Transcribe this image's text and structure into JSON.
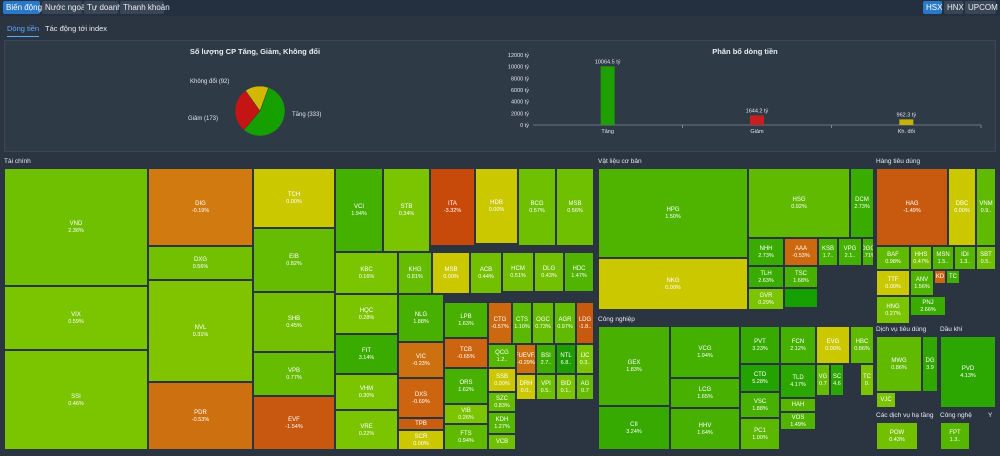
{
  "top_tabs": [
    {
      "label": "Biến động",
      "active": true
    },
    {
      "label": "Nước ngoài",
      "active": false
    },
    {
      "label": "Tự doanh",
      "active": false
    },
    {
      "label": "Thanh khoản",
      "active": false
    }
  ],
  "exchange_tabs": [
    {
      "label": "HSX",
      "active": true
    },
    {
      "label": "HNX",
      "active": false
    },
    {
      "label": "UPCOM",
      "active": false
    }
  ],
  "sub_tabs": [
    {
      "label": "Dòng tiền",
      "active": true
    },
    {
      "label": "Tác động tới index",
      "active": false
    }
  ],
  "colors": {
    "up_dark": "#16a000",
    "up": "#4fb800",
    "up_light": "#7fc800",
    "ref": "#c8c800",
    "down": "#c86400",
    "down_dark": "#c84000",
    "neutral": "#d9c400"
  },
  "pie": {
    "title": "Số lượng CP Tăng, Giảm, Không đổi",
    "labels": {
      "neutral": "Không đổi (92)",
      "down": "Giảm (173)",
      "up": "Tăng (333)"
    },
    "values": {
      "up": 333,
      "down": 173,
      "neutral": 92
    }
  },
  "chart_data": {
    "type": "bar",
    "title": "Phân bổ dòng tiền",
    "categories": [
      "Tăng",
      "Giảm",
      "Kh. đổi"
    ],
    "values": [
      10064.5,
      1644.2,
      962.3
    ],
    "value_labels": [
      "10064.5 tỷ",
      "1644.2 tỷ",
      "962.3 tỷ"
    ],
    "y_ticks": [
      "12000 tỷ",
      "10000 tỷ",
      "8000 tỷ",
      "6000 tỷ",
      "4000 tỷ",
      "2000 tỷ",
      "0 tỷ"
    ],
    "ylim": [
      0,
      12000
    ],
    "colors": [
      "#1ea000",
      "#c81e1e",
      "#c8b400"
    ]
  },
  "sectors": [
    {
      "title": "Tài chính",
      "cells": [
        {
          "t": "VND",
          "p": "2.36%",
          "c": "#6fc000"
        },
        {
          "t": "VIX",
          "p": "0.59%",
          "c": "#7ac400"
        },
        {
          "t": "SSI",
          "p": "0.46%",
          "c": "#7ac400"
        },
        {
          "t": "DIG",
          "p": "-0.19%",
          "c": "#d07a10"
        },
        {
          "t": "DXG",
          "p": "0.56%",
          "c": "#72c000"
        },
        {
          "t": "NVL",
          "p": "0.31%",
          "c": "#80c400"
        },
        {
          "t": "PDR",
          "p": "-0.53%",
          "c": "#cc7010"
        },
        {
          "t": "TCH",
          "p": "0.00%",
          "c": "#ccc800"
        },
        {
          "t": "EIB",
          "p": "0.82%",
          "c": "#66bc00"
        },
        {
          "t": "SHB",
          "p": "0.45%",
          "c": "#72c000"
        },
        {
          "t": "VPB",
          "p": "0.77%",
          "c": "#66bc00"
        },
        {
          "t": "EVF",
          "p": "-1.54%",
          "c": "#c85810"
        },
        {
          "t": "VCI",
          "p": "1.94%",
          "c": "#44b000"
        },
        {
          "t": "STB",
          "p": "0.34%",
          "c": "#7ac400"
        },
        {
          "t": "ITA",
          "p": "-3.32%",
          "c": "#c84a0a"
        },
        {
          "t": "HDB",
          "p": "0.00%",
          "c": "#ccc800"
        },
        {
          "t": "BCG",
          "p": "0.57%",
          "c": "#6ec000"
        },
        {
          "t": "MSB",
          "p": "0.56%",
          "c": "#6ec000"
        },
        {
          "t": "KBC",
          "p": "0.16%",
          "c": "#7ac400"
        },
        {
          "t": "HQC",
          "p": "0.28%",
          "c": "#7ac400"
        },
        {
          "t": "FIT",
          "p": "3.14%",
          "c": "#3aac00"
        },
        {
          "t": "VHM",
          "p": "0.30%",
          "c": "#7ac400"
        },
        {
          "t": "VRE",
          "p": "0.22%",
          "c": "#7ac400"
        },
        {
          "t": "KHG",
          "p": "0.81%",
          "c": "#66bc00"
        },
        {
          "t": "MSB",
          "p": "0.00%",
          "c": "#ccc800"
        },
        {
          "t": "ACB",
          "p": "0.44%",
          "c": "#72c000"
        },
        {
          "t": "HCM",
          "p": "0.51%",
          "c": "#72c000"
        },
        {
          "t": "DLG",
          "p": "0.43%",
          "c": "#72c000"
        },
        {
          "t": "HDC",
          "p": "1.47%",
          "c": "#50b400"
        },
        {
          "t": "NLG",
          "p": "1.88%",
          "c": "#48b000"
        },
        {
          "t": "VIC",
          "p": "-0.23%",
          "c": "#cc7010"
        },
        {
          "t": "DXS",
          "p": "-0.69%",
          "c": "#cc6410"
        },
        {
          "t": "TPB",
          "p": "-0.97%",
          "c": "#c85e10"
        },
        {
          "t": "SCR",
          "p": "0.00%",
          "c": "#ccc800"
        },
        {
          "t": "LPB",
          "p": "1.63%",
          "c": "#48b000"
        },
        {
          "t": "TCB",
          "p": "-0.65%",
          "c": "#cc6410"
        },
        {
          "t": "ORS",
          "p": "1.62%",
          "c": "#48b000"
        },
        {
          "t": "VIB",
          "p": "0.26%",
          "c": "#7ac400"
        },
        {
          "t": "FTS",
          "p": "0.94%",
          "c": "#60ba00"
        },
        {
          "t": "CTG",
          "p": "-0.57%",
          "c": "#cc6810"
        },
        {
          "t": "CTS",
          "p": "1.10%",
          "c": "#5ab800"
        },
        {
          "t": "OGC",
          "p": "0.73%",
          "c": "#66bc00"
        },
        {
          "t": "AGR",
          "p": "0.97%",
          "c": "#60ba00"
        },
        {
          "t": "LDG",
          "p": "-1.8..",
          "c": "#c85a10"
        },
        {
          "t": "QCG",
          "p": "1.2..",
          "c": "#56b600"
        },
        {
          "t": "SSB",
          "p": "0.00%",
          "c": "#ccc800"
        },
        {
          "t": "SZC",
          "p": "0.83%",
          "c": "#66bc00"
        },
        {
          "t": "KDH",
          "p": "1.27%",
          "c": "#56b600"
        },
        {
          "t": "VCB",
          "p": "0.58%",
          "c": "#6ec000"
        },
        {
          "t": "FUEVF..",
          "p": "-0.29%",
          "c": "#cc7010"
        },
        {
          "t": "BSI",
          "p": "2.7..",
          "c": "#40ae00"
        },
        {
          "t": "NTL",
          "p": "6.8..",
          "c": "#1e9e00"
        },
        {
          "t": "IJC",
          "p": "0.3..",
          "c": "#7ac400"
        },
        {
          "t": "DRH",
          "p": "0.0..",
          "c": "#ccc800"
        },
        {
          "t": "VPI",
          "p": "0.5..",
          "c": "#6ec000"
        },
        {
          "t": "BID",
          "p": "0.1..",
          "c": "#7ac400"
        },
        {
          "t": "AG",
          "p": "0.7",
          "c": "#66bc00"
        },
        {
          "t": "HT",
          "p": "1.",
          "c": "#50b400"
        }
      ]
    },
    {
      "title": "Vật liệu cơ bản",
      "cells": [
        {
          "t": "HPG",
          "p": "1.50%",
          "c": "#4eb400"
        },
        {
          "t": "NKG",
          "p": "0.00%",
          "c": "#ccc800"
        },
        {
          "t": "HSG",
          "p": "0.92%",
          "c": "#60ba00"
        },
        {
          "t": "DCM",
          "p": "2.73%",
          "c": "#3aac00"
        },
        {
          "t": "NHH",
          "p": "2.73%",
          "c": "#3aac00"
        },
        {
          "t": "AAA",
          "p": "-0.53%",
          "c": "#cc6810"
        },
        {
          "t": "KSB",
          "p": "1.7..",
          "c": "#48b000"
        },
        {
          "t": "VPG",
          "p": "2.1..",
          "c": "#44b000"
        },
        {
          "t": "DGC",
          "p": "1.71%",
          "c": "#48b000"
        },
        {
          "t": "TLH",
          "p": "2.63%",
          "c": "#3aac00"
        },
        {
          "t": "TSC",
          "p": "1.68%",
          "c": "#48b000"
        },
        {
          "t": "GVR",
          "p": "0.29%",
          "c": "#7ac400"
        }
      ]
    },
    {
      "title": "Công nghiệp",
      "cells": [
        {
          "t": "GEX",
          "p": "1.83%",
          "c": "#48b000"
        },
        {
          "t": "CII",
          "p": "3.24%",
          "c": "#36aa00"
        },
        {
          "t": "VCG",
          "p": "1.94%",
          "c": "#44b000"
        },
        {
          "t": "LCG",
          "p": "1.65%",
          "c": "#48b000"
        },
        {
          "t": "HHV",
          "p": "1.64%",
          "c": "#48b000"
        },
        {
          "t": "PVT",
          "p": "3.23%",
          "c": "#36aa00"
        },
        {
          "t": "CTD",
          "p": "5.28%",
          "c": "#24a200"
        },
        {
          "t": "VSC",
          "p": "1.88%",
          "c": "#48b000"
        },
        {
          "t": "PC1",
          "p": "1.00%",
          "c": "#5ab800"
        },
        {
          "t": "FCN",
          "p": "2.12%",
          "c": "#44b000"
        },
        {
          "t": "EVG",
          "p": "0.00%",
          "c": "#ccc800"
        },
        {
          "t": "HBC",
          "p": "0.86%",
          "c": "#60ba00"
        },
        {
          "t": "TLD",
          "p": "4.17%",
          "c": "#2ca600"
        },
        {
          "t": "HAH",
          "p": "1.33%",
          "c": "#56b600"
        },
        {
          "t": "VOS",
          "p": "1.49%",
          "c": "#50b400"
        },
        {
          "t": "VG",
          "p": "0.7",
          "c": "#66bc00"
        },
        {
          "t": "SC",
          "p": "4.6",
          "c": "#2ca600"
        },
        {
          "t": "TC",
          "p": "0.",
          "c": "#7ac400"
        }
      ]
    },
    {
      "title": "Hàng tiêu dùng",
      "cells": [
        {
          "t": "HAG",
          "p": "-1.49%",
          "c": "#c85a10"
        },
        {
          "t": "DBC",
          "p": "0.00%",
          "c": "#ccc800"
        },
        {
          "t": "VNM",
          "p": "0.9..",
          "c": "#60ba00"
        },
        {
          "t": "BAF",
          "p": "0.98%",
          "c": "#60ba00"
        },
        {
          "t": "HHS",
          "p": "0.47%",
          "c": "#72c000"
        },
        {
          "t": "MSN",
          "p": "1.5..",
          "c": "#50b400"
        },
        {
          "t": "IDI",
          "p": "1.3..",
          "c": "#56b600"
        },
        {
          "t": "SBT",
          "p": "0.5..",
          "c": "#6ec000"
        },
        {
          "t": "TTF",
          "p": "0.00%",
          "c": "#ccc800"
        },
        {
          "t": "ANV",
          "p": "1.56%",
          "c": "#50b400"
        },
        {
          "t": "KD",
          "p": "-0.",
          "c": "#cc6410"
        },
        {
          "t": "TC",
          "p": "2.",
          "c": "#40ae00"
        },
        {
          "t": "PNJ",
          "p": "2.66%",
          "c": "#3aac00"
        },
        {
          "t": "HNG",
          "p": "0.27%",
          "c": "#7ac400"
        }
      ]
    },
    {
      "title": "Dịch vụ tiêu dùng",
      "cells": [
        {
          "t": "MWG",
          "p": "0.86%",
          "c": "#60ba00"
        },
        {
          "t": "DG",
          "p": "3.9",
          "c": "#30a800"
        },
        {
          "t": "VJC",
          "p": "0.",
          "c": "#7ac400"
        }
      ]
    },
    {
      "title": "Dầu khí",
      "cells": [
        {
          "t": "PVD",
          "p": "4.13%",
          "c": "#2ca600"
        }
      ]
    },
    {
      "title": "Các dịch vụ hạ tầng",
      "cells": [
        {
          "t": "POW",
          "p": "0.43%",
          "c": "#72c000"
        }
      ]
    },
    {
      "title": "Công nghệ",
      "cells": [
        {
          "t": "FPT",
          "p": "1.3..",
          "c": "#56b600"
        }
      ]
    },
    {
      "title": "Y",
      "cells": []
    }
  ]
}
